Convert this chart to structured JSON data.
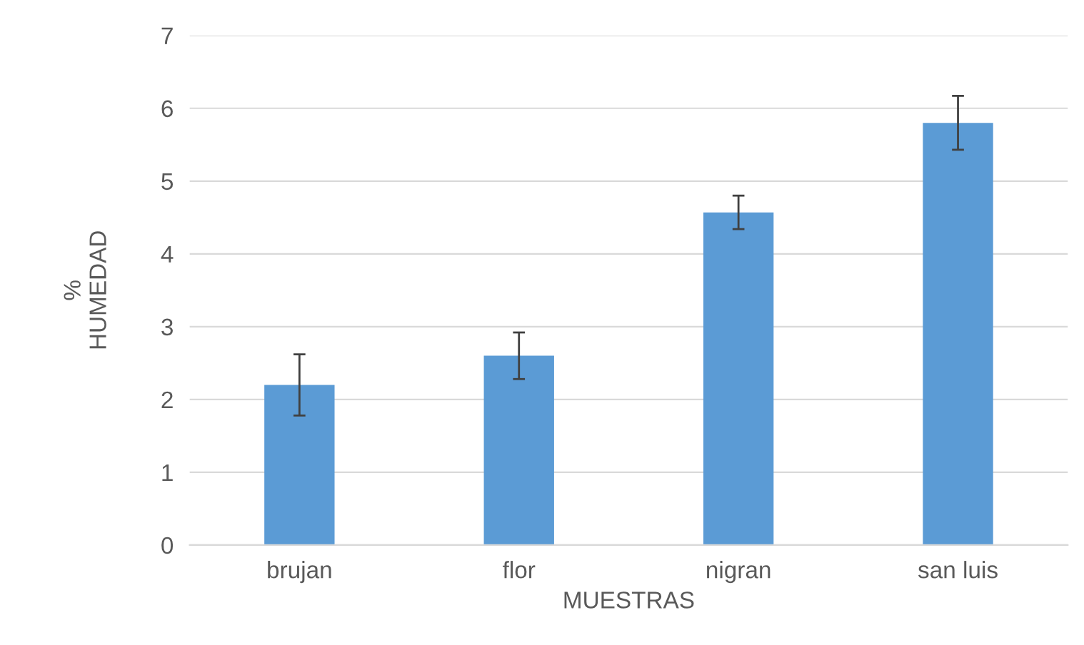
{
  "chart_data": {
    "type": "bar",
    "xlabel": "MUESTRAS",
    "ylabel": "%\nHUMEDAD",
    "categories": [
      "brujan",
      "flor",
      "nigran",
      "san luis"
    ],
    "values": [
      2.2,
      2.6,
      4.57,
      5.8
    ],
    "errors": [
      0.42,
      0.32,
      0.23,
      0.37
    ],
    "color": "#5b9bd5",
    "ylim": [
      0,
      7
    ],
    "yticks": [
      0,
      1,
      2,
      3,
      4,
      5,
      6,
      7
    ],
    "grid": "y"
  }
}
